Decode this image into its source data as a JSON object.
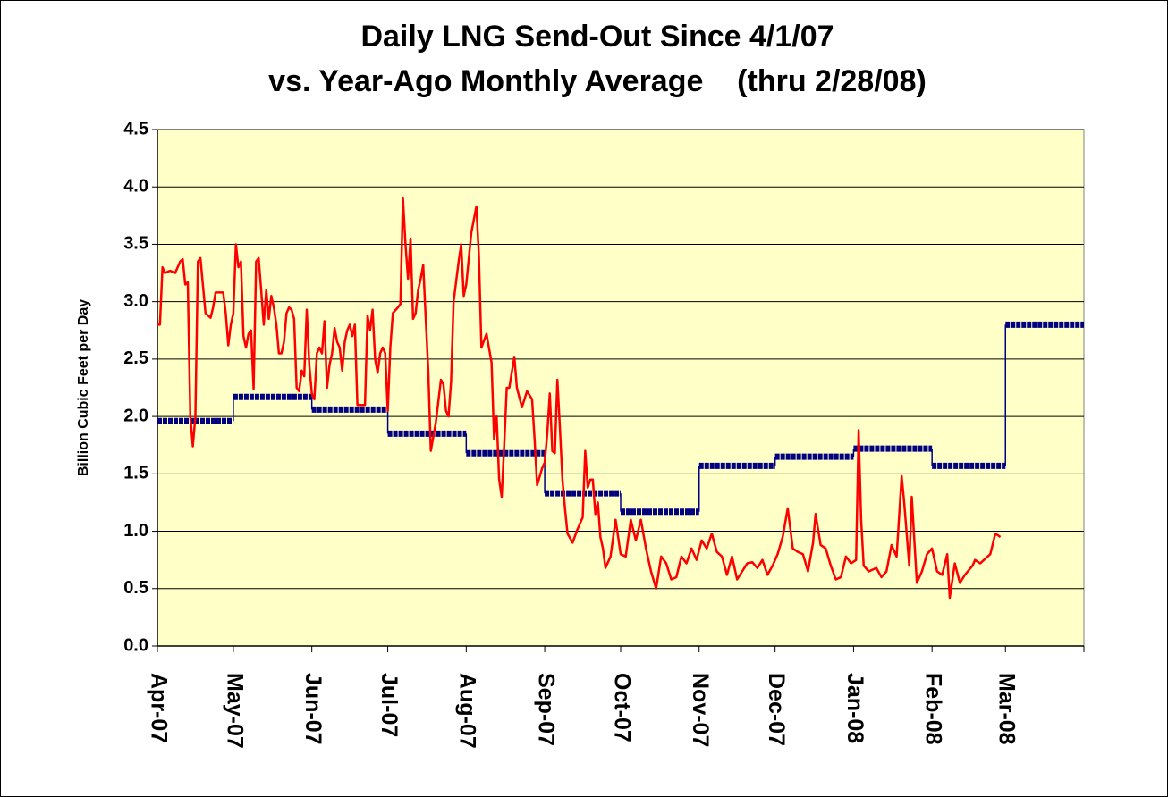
{
  "chart_data": {
    "type": "line",
    "title": [
      "Daily LNG Send-Out Since 4/1/07",
      "vs. Year-Ago Monthly Average    (thru 2/28/08)"
    ],
    "y_label": "Billion Cubic Feet per Day",
    "xlim": [
      0,
      366
    ],
    "xticks": [
      {
        "value": 0,
        "label": "Apr-07"
      },
      {
        "value": 30,
        "label": "May-07"
      },
      {
        "value": 61,
        "label": "Jun-07"
      },
      {
        "value": 91,
        "label": "Jul-07"
      },
      {
        "value": 122,
        "label": "Aug-07"
      },
      {
        "value": 153,
        "label": "Sep-07"
      },
      {
        "value": 183,
        "label": "Oct-07"
      },
      {
        "value": 214,
        "label": "Nov-07"
      },
      {
        "value": 244,
        "label": "Dec-07"
      },
      {
        "value": 275,
        "label": "Jan-08"
      },
      {
        "value": 306,
        "label": "Feb-08"
      },
      {
        "value": 335,
        "label": "Mar-08"
      }
    ],
    "ylim": [
      0,
      4.5
    ],
    "yticks": [
      {
        "value": 0,
        "label": "0.0"
      },
      0.5,
      {
        "value": 1,
        "label": "1.0"
      },
      1.5,
      {
        "value": 2,
        "label": "2.0"
      },
      2.5,
      {
        "value": 3,
        "label": "3.0"
      },
      3.5,
      {
        "value": 4,
        "label": "4.0"
      },
      4.5
    ],
    "grid": true,
    "plot_background": "#ffffc8",
    "series": [
      {
        "color": "#ff0000",
        "style": "line",
        "x": [
          0,
          1,
          2,
          3,
          5,
          7,
          9,
          10,
          11,
          12,
          13,
          14,
          15,
          16,
          17,
          19,
          21,
          22,
          23,
          26,
          27,
          28,
          29,
          30,
          31,
          32,
          33,
          34,
          35,
          36,
          37,
          38,
          39,
          40,
          41,
          42,
          43,
          44,
          45,
          46,
          47,
          48,
          49,
          50,
          51,
          52,
          53,
          54,
          55,
          56,
          57,
          58,
          59,
          60,
          61,
          62,
          63,
          64,
          65,
          66,
          67,
          68,
          69,
          70,
          71,
          72,
          73,
          74,
          75,
          76,
          77,
          78,
          79,
          82,
          83,
          84,
          85,
          86,
          87,
          88,
          89,
          90,
          91,
          92,
          93,
          95,
          96,
          97,
          98,
          99,
          100,
          101,
          102,
          103,
          104,
          105,
          106,
          107,
          108,
          110,
          112,
          113,
          114,
          115,
          116,
          117,
          119,
          120,
          121,
          122,
          124,
          126,
          127,
          128,
          130,
          132,
          133,
          134,
          135,
          136,
          137,
          138,
          139,
          141,
          142,
          144,
          146,
          148,
          149,
          150,
          152,
          153,
          154,
          155,
          156,
          157,
          158,
          159,
          160,
          161,
          162,
          164,
          166,
          168,
          169,
          170,
          171,
          172,
          173,
          174,
          175,
          176,
          177,
          179,
          181,
          182,
          183,
          185,
          187,
          189,
          191,
          193,
          195,
          197,
          199,
          201,
          203,
          205,
          207,
          209,
          211,
          213,
          215,
          217,
          219,
          221,
          223,
          225,
          227,
          229,
          231,
          233,
          235,
          237,
          239,
          241,
          243,
          245,
          247,
          249,
          251,
          253,
          255,
          257,
          259,
          260,
          262,
          264,
          266,
          268,
          270,
          272,
          274,
          276,
          277,
          278,
          279,
          281,
          284,
          286,
          288,
          290,
          292,
          294,
          295,
          297,
          298,
          300,
          302,
          304,
          306,
          308,
          310,
          312,
          313,
          315,
          317,
          319,
          322,
          323,
          325,
          328,
          329,
          331,
          333
        ],
        "values": [
          2.8,
          2.8,
          3.3,
          3.25,
          3.27,
          3.25,
          3.35,
          3.37,
          3.15,
          3.17,
          2.0,
          1.74,
          2.0,
          3.35,
          3.38,
          2.9,
          2.86,
          2.95,
          3.08,
          3.08,
          2.9,
          2.62,
          2.8,
          2.9,
          3.5,
          3.3,
          3.35,
          2.7,
          2.6,
          2.72,
          2.75,
          2.24,
          3.35,
          3.38,
          3.1,
          2.8,
          3.1,
          2.85,
          3.05,
          2.95,
          2.8,
          2.55,
          2.55,
          2.65,
          2.9,
          2.95,
          2.93,
          2.85,
          2.25,
          2.22,
          2.4,
          2.35,
          2.93,
          2.45,
          2.2,
          2.15,
          2.55,
          2.6,
          2.55,
          2.83,
          2.25,
          2.45,
          2.55,
          2.77,
          2.65,
          2.6,
          2.4,
          2.65,
          2.75,
          2.8,
          2.7,
          2.8,
          2.1,
          2.1,
          2.88,
          2.75,
          2.93,
          2.5,
          2.38,
          2.55,
          2.6,
          2.55,
          2.05,
          2.6,
          2.9,
          2.95,
          2.98,
          3.9,
          3.5,
          3.2,
          3.55,
          2.85,
          2.9,
          3.1,
          3.2,
          3.32,
          2.85,
          2.4,
          1.7,
          1.95,
          2.32,
          2.28,
          2.05,
          2.0,
          2.3,
          3.0,
          3.35,
          3.5,
          3.05,
          3.15,
          3.6,
          3.83,
          3.4,
          2.6,
          2.72,
          2.47,
          1.8,
          2.0,
          1.45,
          1.3,
          1.75,
          2.25,
          2.25,
          2.52,
          2.25,
          2.08,
          2.22,
          2.15,
          1.8,
          1.4,
          1.55,
          1.6,
          1.85,
          2.2,
          1.7,
          1.68,
          2.32,
          1.9,
          1.45,
          1.2,
          0.98,
          0.9,
          1.02,
          1.12,
          1.7,
          1.38,
          1.45,
          1.45,
          1.15,
          1.25,
          0.95,
          0.85,
          0.68,
          0.78,
          1.1,
          0.95,
          0.8,
          0.78,
          1.1,
          0.92,
          1.1,
          0.85,
          0.65,
          0.5,
          0.78,
          0.72,
          0.58,
          0.6,
          0.78,
          0.72,
          0.85,
          0.75,
          0.92,
          0.85,
          0.98,
          0.82,
          0.78,
          0.62,
          0.78,
          0.58,
          0.65,
          0.72,
          0.73,
          0.68,
          0.75,
          0.62,
          0.7,
          0.8,
          0.95,
          1.2,
          0.85,
          0.82,
          0.8,
          0.65,
          0.9,
          1.15,
          0.88,
          0.85,
          0.7,
          0.58,
          0.6,
          0.78,
          0.72,
          0.75,
          1.88,
          1.1,
          0.7,
          0.65,
          0.68,
          0.6,
          0.65,
          0.88,
          0.78,
          1.48,
          1.25,
          0.7,
          1.3,
          0.55,
          0.65,
          0.8,
          0.85,
          0.65,
          0.62,
          0.8,
          0.42,
          0.72,
          0.55,
          0.62,
          0.7,
          0.75,
          0.72,
          0.78,
          0.8,
          0.98,
          0.95
        ]
      },
      {
        "color": "#000080",
        "style": "step",
        "x": [
          0,
          30,
          61,
          91,
          122,
          153,
          183,
          214,
          244,
          275,
          306,
          335
        ],
        "values": [
          1.96,
          2.17,
          2.06,
          1.85,
          1.68,
          1.33,
          1.17,
          1.57,
          1.65,
          1.72,
          1.57,
          2.8
        ]
      }
    ]
  }
}
